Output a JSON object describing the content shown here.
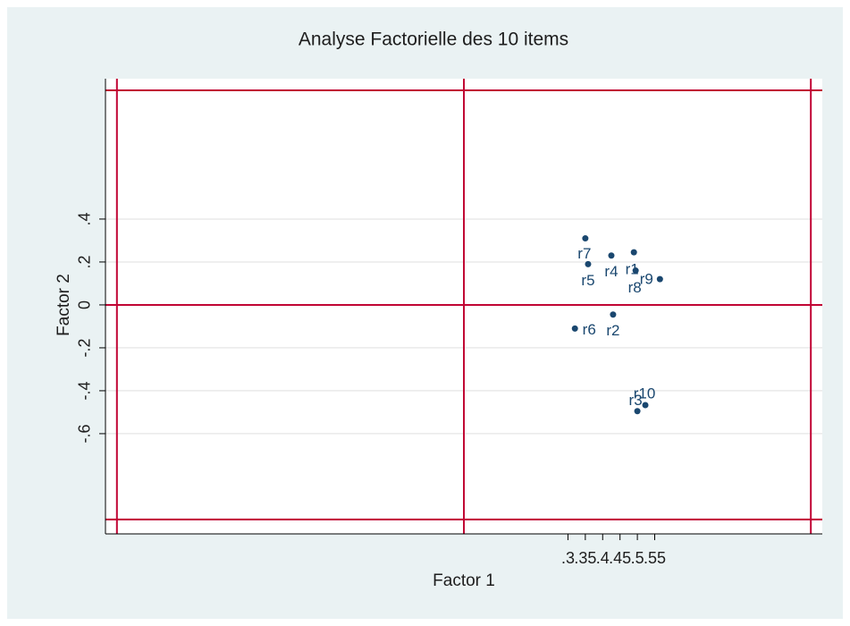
{
  "chart_data": {
    "type": "scatter",
    "title": "Analyse Factorielle des 10 items",
    "xlabel": "Factor 1",
    "ylabel": "Factor 2",
    "series": [
      {
        "name": "items",
        "color": "#1a476f",
        "labels": [
          "r1",
          "r2",
          "r3",
          "r4",
          "r5",
          "r6",
          "r7",
          "r8",
          "r9",
          "r10"
        ],
        "x": [
          0.49,
          0.43,
          0.5,
          0.425,
          0.358,
          0.32,
          0.35,
          0.495,
          0.565,
          0.523
        ],
        "values": [
          0.245,
          -0.045,
          -0.495,
          0.23,
          0.19,
          -0.11,
          0.31,
          0.16,
          0.12,
          -0.467
        ]
      }
    ],
    "xlim": [
      -1.033,
      1.033
    ],
    "ylim": [
      -1.067,
      1.054
    ],
    "xticks": [
      0.3,
      0.35,
      0.4,
      0.45,
      0.5,
      0.55
    ],
    "yticks": [
      {
        "value": 0.4,
        "label": ".4"
      },
      {
        "value": 0.2,
        "label": ".2"
      },
      0,
      {
        "value": -0.2,
        "label": "-.2"
      },
      {
        "value": -0.4,
        "label": "-.4"
      },
      {
        "value": -0.6,
        "label": "-.6"
      }
    ],
    "reference_lines": {
      "x": [
        -1,
        0,
        1
      ],
      "y": [
        -1,
        0,
        1
      ],
      "color": "#c10534"
    },
    "grid": true
  }
}
